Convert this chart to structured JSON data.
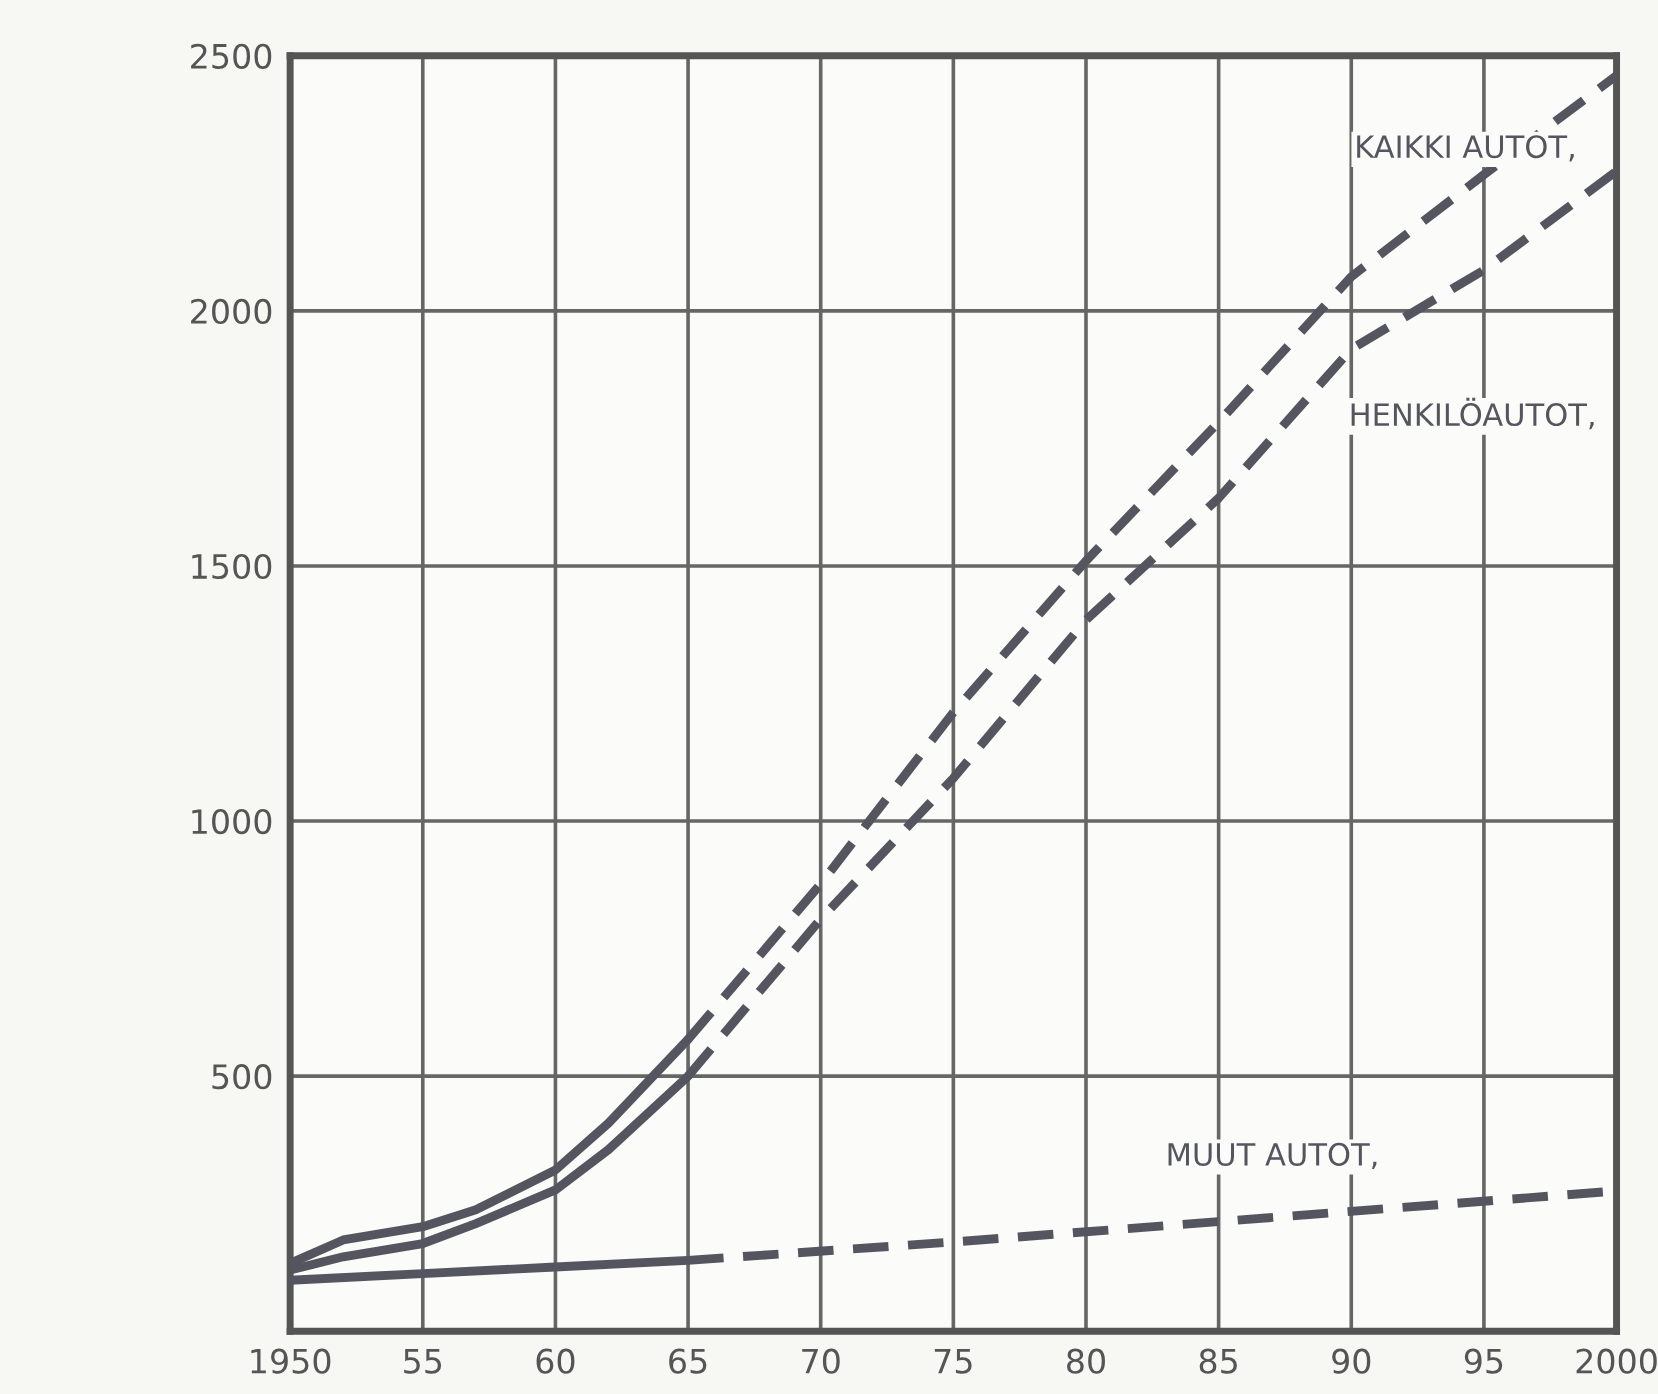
{
  "chart_data": {
    "type": "line",
    "xlim": [
      1950,
      2000
    ],
    "ylim": [
      0,
      2500
    ],
    "xticks": [
      {
        "value": 1950,
        "label": "1950"
      },
      {
        "value": 1955,
        "label": "55"
      },
      {
        "value": 1960,
        "label": "60"
      },
      {
        "value": 1965,
        "label": "65"
      },
      {
        "value": 1970,
        "label": "70"
      },
      {
        "value": 1975,
        "label": "75"
      },
      {
        "value": 1980,
        "label": "80"
      },
      {
        "value": 1985,
        "label": "85"
      },
      {
        "value": 1990,
        "label": "90"
      },
      {
        "value": 1995,
        "label": "95"
      },
      {
        "value": 2000,
        "label": "2000"
      }
    ],
    "yticks": [
      {
        "value": 0,
        "label": null
      },
      500,
      1000,
      1500,
      2000,
      2500
    ],
    "grid": true,
    "marker": "none",
    "series": [
      {
        "color": "#55555f",
        "line_style": "solid",
        "x": [
          1950,
          1952,
          1955,
          1957,
          1960,
          1962,
          1965
        ],
        "values": [
          133,
          179,
          205,
          238,
          316,
          408,
          572
        ]
      },
      {
        "color": "#55555f",
        "line_style": "solid",
        "x": [
          1950,
          1952,
          1955,
          1957,
          1960,
          1962,
          1965
        ],
        "values": [
          120,
          146,
          172,
          211,
          277,
          356,
          500
        ]
      },
      {
        "color": "#55555f",
        "line_style": "solid",
        "x": [
          1950,
          1955,
          1960,
          1965
        ],
        "values": [
          100,
          113,
          126,
          139
        ]
      },
      {
        "name": "KAIKKI AUTOT,",
        "color": "#55555f",
        "line_style": "dashed",
        "x": [
          1965,
          1970,
          1975,
          1980,
          1985,
          1990,
          1995,
          2000
        ],
        "values": [
          572,
          877,
          1213,
          1510,
          1782,
          2067,
          2267,
          2461
        ]
      },
      {
        "name": "HENKILÖAUTOT,",
        "color": "#55555f",
        "line_style": "dashed",
        "x": [
          1965,
          1970,
          1975,
          1980,
          1985,
          1990,
          1995,
          2000
        ],
        "values": [
          500,
          808,
          1084,
          1394,
          1633,
          1925,
          2080,
          2274
        ]
      },
      {
        "name": "MUUT AUTOT,",
        "color": "#55555f",
        "line_style": "dashed",
        "x": [
          1965,
          1975,
          1985,
          2000
        ],
        "values": [
          139,
          175,
          215,
          275
        ]
      }
    ]
  }
}
